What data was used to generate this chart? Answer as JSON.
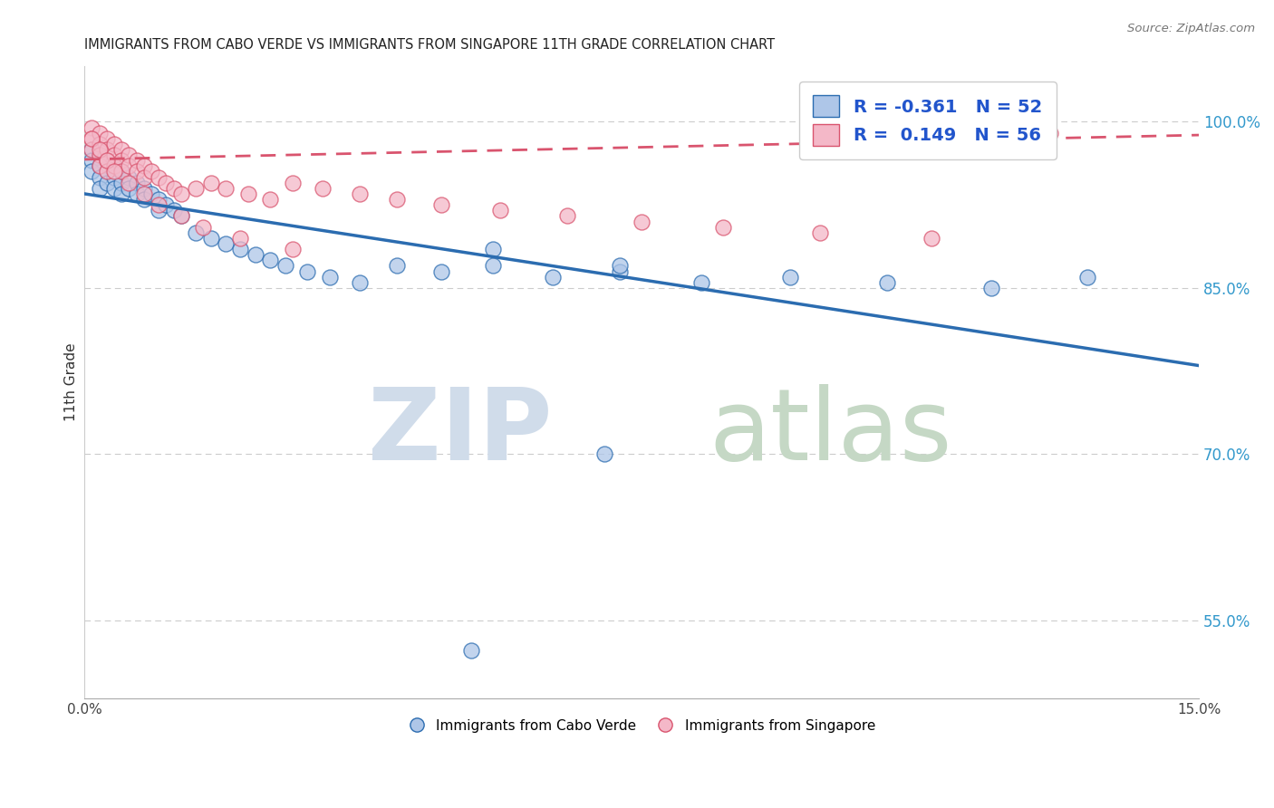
{
  "title": "IMMIGRANTS FROM CABO VERDE VS IMMIGRANTS FROM SINGAPORE 11TH GRADE CORRELATION CHART",
  "source": "Source: ZipAtlas.com",
  "ylabel": "11th Grade",
  "ytick_labels": [
    "55.0%",
    "70.0%",
    "85.0%",
    "100.0%"
  ],
  "ytick_values": [
    0.55,
    0.7,
    0.85,
    1.0
  ],
  "xlim": [
    0.0,
    0.15
  ],
  "ylim": [
    0.48,
    1.05
  ],
  "legend_blue_R": "R = -0.361",
  "legend_blue_N": "N = 52",
  "legend_pink_R": "R =  0.149",
  "legend_pink_N": "N = 56",
  "cabo_verde_color": "#aec6e8",
  "singapore_color": "#f4b8c8",
  "blue_line_color": "#2b6cb0",
  "pink_line_color": "#d9546e",
  "cabo_verde_x": [
    0.001,
    0.001,
    0.001,
    0.002,
    0.002,
    0.002,
    0.002,
    0.003,
    0.003,
    0.003,
    0.004,
    0.004,
    0.004,
    0.005,
    0.005,
    0.005,
    0.006,
    0.006,
    0.007,
    0.007,
    0.008,
    0.008,
    0.009,
    0.01,
    0.01,
    0.011,
    0.012,
    0.013,
    0.015,
    0.017,
    0.019,
    0.021,
    0.023,
    0.025,
    0.027,
    0.03,
    0.033,
    0.037,
    0.042,
    0.048,
    0.055,
    0.063,
    0.072,
    0.083,
    0.095,
    0.108,
    0.122,
    0.135,
    0.055,
    0.072,
    0.07,
    0.052
  ],
  "cabo_verde_y": [
    0.975,
    0.965,
    0.955,
    0.97,
    0.96,
    0.95,
    0.94,
    0.965,
    0.955,
    0.945,
    0.96,
    0.95,
    0.94,
    0.955,
    0.945,
    0.935,
    0.95,
    0.94,
    0.945,
    0.935,
    0.94,
    0.93,
    0.935,
    0.93,
    0.92,
    0.925,
    0.92,
    0.915,
    0.9,
    0.895,
    0.89,
    0.885,
    0.88,
    0.875,
    0.87,
    0.865,
    0.86,
    0.855,
    0.87,
    0.865,
    0.87,
    0.86,
    0.865,
    0.855,
    0.86,
    0.855,
    0.85,
    0.86,
    0.885,
    0.87,
    0.7,
    0.523
  ],
  "singapore_x": [
    0.001,
    0.001,
    0.001,
    0.002,
    0.002,
    0.002,
    0.002,
    0.003,
    0.003,
    0.003,
    0.003,
    0.004,
    0.004,
    0.004,
    0.005,
    0.005,
    0.005,
    0.006,
    0.006,
    0.007,
    0.007,
    0.008,
    0.008,
    0.009,
    0.01,
    0.011,
    0.012,
    0.013,
    0.015,
    0.017,
    0.019,
    0.022,
    0.025,
    0.028,
    0.032,
    0.037,
    0.042,
    0.048,
    0.056,
    0.065,
    0.075,
    0.086,
    0.099,
    0.114,
    0.13,
    0.001,
    0.002,
    0.003,
    0.004,
    0.006,
    0.008,
    0.01,
    0.013,
    0.016,
    0.021,
    0.028
  ],
  "singapore_y": [
    0.995,
    0.985,
    0.975,
    0.99,
    0.98,
    0.97,
    0.96,
    0.985,
    0.975,
    0.965,
    0.955,
    0.98,
    0.97,
    0.96,
    0.975,
    0.965,
    0.955,
    0.97,
    0.96,
    0.965,
    0.955,
    0.96,
    0.95,
    0.955,
    0.95,
    0.945,
    0.94,
    0.935,
    0.94,
    0.945,
    0.94,
    0.935,
    0.93,
    0.945,
    0.94,
    0.935,
    0.93,
    0.925,
    0.92,
    0.915,
    0.91,
    0.905,
    0.9,
    0.895,
    0.99,
    0.985,
    0.975,
    0.965,
    0.955,
    0.945,
    0.935,
    0.925,
    0.915,
    0.905,
    0.895,
    0.885
  ],
  "cabo_verde_trend_x": [
    0.0,
    0.15
  ],
  "cabo_verde_trend_y": [
    0.935,
    0.78
  ],
  "singapore_trend_x": [
    0.0,
    0.15
  ],
  "singapore_trend_y": [
    0.966,
    0.988
  ]
}
